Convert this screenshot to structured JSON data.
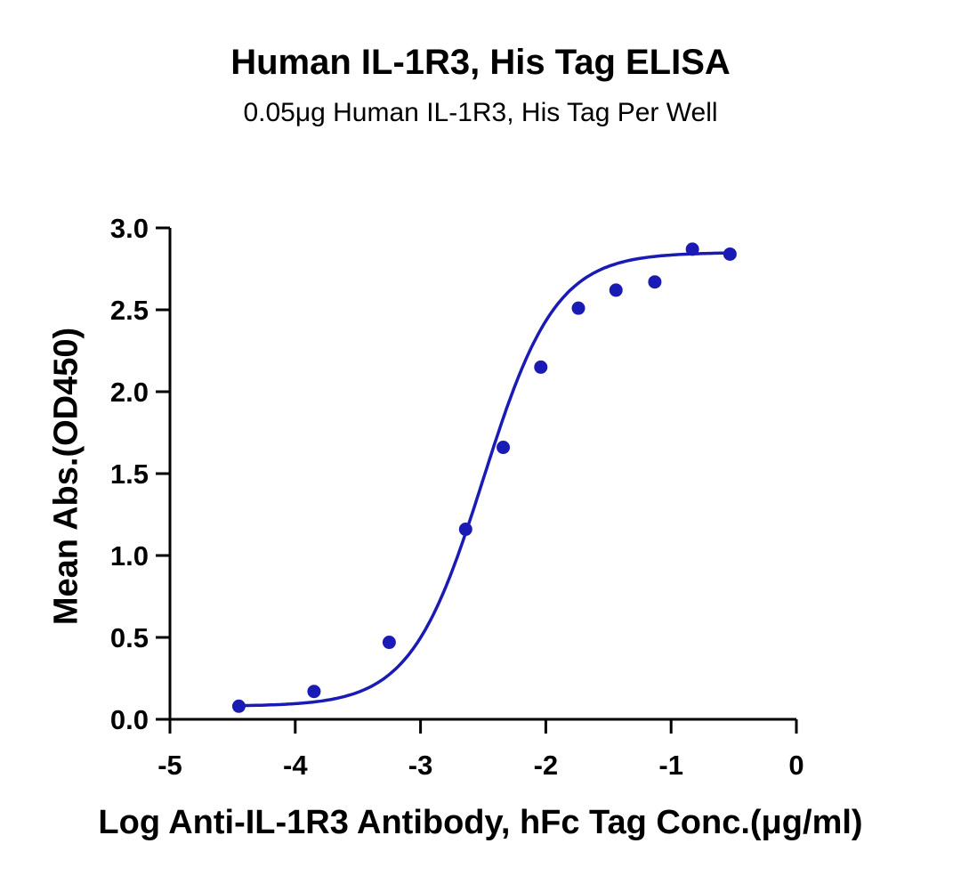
{
  "chart_data": {
    "type": "scatter",
    "title": "Human IL-1R3, His Tag ELISA",
    "subtitle": "0.05μg Human IL-1R3, His Tag Per Well",
    "xlabel": "Log Anti-IL-1R3 Antibody, hFc Tag Conc.(μg/ml)",
    "ylabel": "Mean Abs.(OD450)",
    "xlim": [
      -5,
      0
    ],
    "ylim": [
      0,
      3.0
    ],
    "x_ticks": [
      "-5",
      "-4",
      "-3",
      "-2",
      "-1",
      "0"
    ],
    "y_ticks": [
      "0.0",
      "0.5",
      "1.0",
      "1.5",
      "2.0",
      "2.5",
      "3.0"
    ],
    "grid": false,
    "series": [
      {
        "points": [
          {
            "x": -4.45,
            "y": 0.08
          },
          {
            "x": -3.85,
            "y": 0.17
          },
          {
            "x": -3.25,
            "y": 0.47
          },
          {
            "x": -2.64,
            "y": 1.16
          },
          {
            "x": -2.34,
            "y": 1.66
          },
          {
            "x": -2.04,
            "y": 2.15
          },
          {
            "x": -1.74,
            "y": 2.51
          },
          {
            "x": -1.44,
            "y": 2.62
          },
          {
            "x": -1.13,
            "y": 2.67
          },
          {
            "x": -0.83,
            "y": 2.87
          },
          {
            "x": -0.53,
            "y": 2.84
          }
        ],
        "fit": {
          "bottom": 0.08,
          "top": 2.85,
          "logEC50": -2.5,
          "hill": 1.5,
          "x_range": [
            -4.45,
            -0.53
          ]
        }
      }
    ],
    "colors": {
      "series": "#1a1ab4",
      "axis": "#000000"
    }
  }
}
